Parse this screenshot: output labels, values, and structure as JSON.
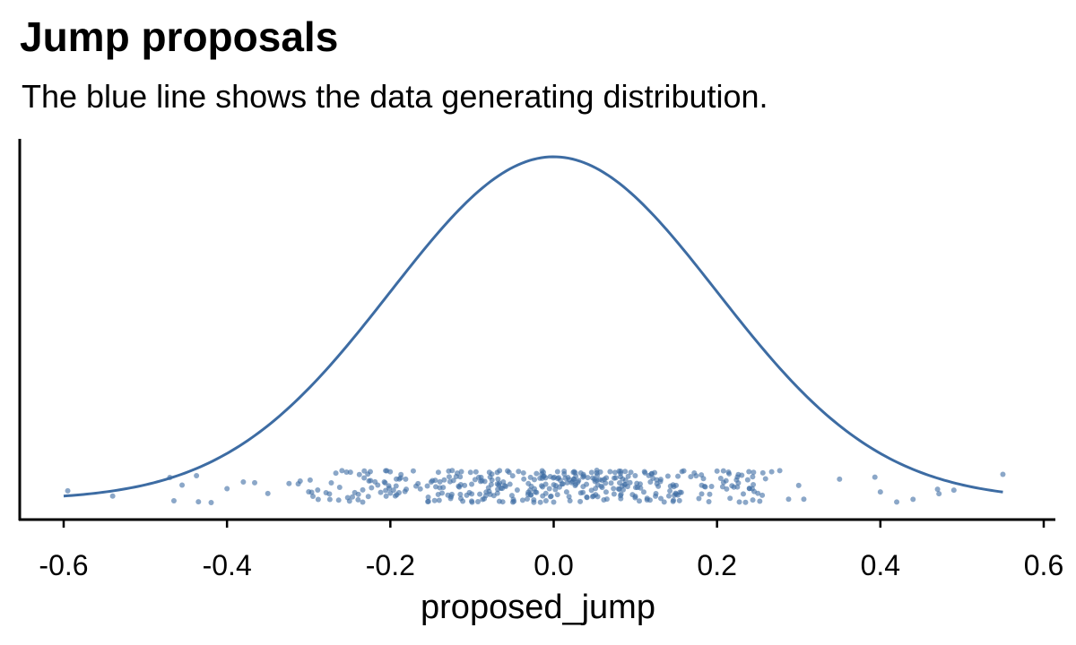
{
  "chart_data": {
    "type": "scatter",
    "title": "Jump proposals",
    "subtitle": "The blue line shows the data generating distribution.",
    "xlabel": "proposed_jump",
    "ylabel": "",
    "xlim": [
      -0.65,
      0.6
    ],
    "xticks": [
      -0.6,
      -0.4,
      -0.2,
      0.0,
      0.2,
      0.4,
      0.6
    ],
    "xtick_labels": [
      "-0.6",
      "-0.4",
      "-0.2",
      "0.0",
      "0.2",
      "0.4",
      "0.6"
    ],
    "grid": false,
    "legend": "none",
    "curve": {
      "kind": "normal density",
      "mean": 0.0,
      "sd": 0.2,
      "x_range": [
        -0.6,
        0.55
      ],
      "color": "#3D6CA3"
    },
    "points": {
      "kind": "jittered strip of proposed_jump values",
      "color": "#3D6CA3",
      "count": 420,
      "x_values_sample": [
        -0.595,
        -0.54,
        -0.47,
        -0.465,
        -0.455,
        -0.435,
        -0.4,
        -0.38,
        -0.35,
        -0.3,
        -0.25,
        -0.2,
        -0.15,
        -0.1,
        -0.05,
        0.0,
        0.05,
        0.1,
        0.15,
        0.2,
        0.25,
        0.3,
        0.35,
        0.4,
        0.42,
        0.44,
        0.47,
        0.49,
        0.55
      ]
    }
  }
}
